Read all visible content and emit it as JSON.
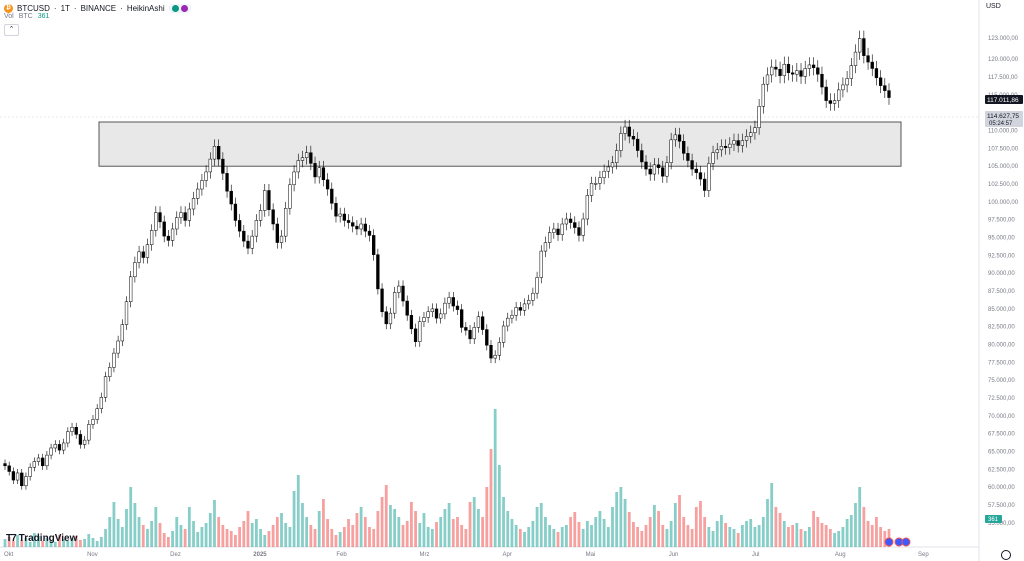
{
  "header": {
    "symbol": "BTCUSD",
    "interval": "1T",
    "exchange": "BINANCE",
    "chart_style": "HeikinAshi",
    "separator": "·"
  },
  "volume_legend": {
    "label": "Vol",
    "unit": "BTC",
    "value": "361"
  },
  "currency_button": "USD",
  "brand": "TradingView",
  "icons": {
    "coin": "bitcoin-coin-icon",
    "collapse": "chevron-up-icon",
    "settings": "gear-icon",
    "flags": "flag-icon"
  },
  "colors": {
    "up_volume": "#26a69a",
    "down_volume": "#ef5350",
    "candle_up": "#ffffff",
    "candle_down": "#000000",
    "zone_fill": "#e8e8e8"
  },
  "chart_data": {
    "type": "candlestick-heikinashi",
    "y_axis_ticks": [
      "123.000,00",
      "120.000,00",
      "117.500,00",
      "115.000,00",
      "110.000,00",
      "107.500,00",
      "105.000,00",
      "102.500,00",
      "100.000,00",
      "97.500,00",
      "95.000,00",
      "92.500,00",
      "90.000,00",
      "87.500,00",
      "85.000,00",
      "82.500,00",
      "80.000,00",
      "77.500,00",
      "75.000,00",
      "72.500,00",
      "70.000,00",
      "67.500,00",
      "65.000,00",
      "62.500,00",
      "60.000,00",
      "57.500,00",
      "55.000,00"
    ],
    "x_axis_ticks": [
      "Okt",
      "Nov",
      "Dez",
      "2025",
      "Feb",
      "Mrz",
      "Apr",
      "Mai",
      "Jun",
      "Jul",
      "Aug",
      "Sep"
    ],
    "price_labels": {
      "last": "117.011,86",
      "current": "114.627,75",
      "countdown": "05:24:57",
      "volume": "361"
    },
    "zone": {
      "y_top": 111200,
      "y_bottom": 105000
    },
    "ylim": [
      54000,
      125500
    ],
    "closes": [
      63000,
      62200,
      61000,
      62000,
      60200,
      61500,
      62800,
      63600,
      64100,
      63000,
      64500,
      65500,
      66000,
      65200,
      66200,
      67800,
      68400,
      67400,
      66000,
      66600,
      68800,
      69500,
      71000,
      72600,
      75500,
      76800,
      78800,
      80500,
      82800,
      86000,
      89500,
      91500,
      93000,
      92200,
      94000,
      96000,
      98500,
      97200,
      95200,
      94600,
      96200,
      97800,
      98500,
      97400,
      99000,
      100500,
      101800,
      103000,
      104200,
      106000,
      107800,
      106000,
      104000,
      101500,
      99700,
      97400,
      95900,
      94500,
      93500,
      95200,
      97400,
      98800,
      101600,
      98900,
      96900,
      94300,
      95200,
      99100,
      102400,
      104200,
      105800,
      106200,
      106900,
      105400,
      103500,
      104800,
      103100,
      101800,
      99800,
      98000,
      98300,
      97400,
      97100,
      96600,
      96200,
      96900,
      95900,
      95300,
      92600,
      87800,
      84600,
      82900,
      84400,
      87300,
      88200,
      86100,
      84100,
      82200,
      80400,
      83200,
      83800,
      84600,
      85000,
      83700,
      84300,
      85800,
      86600,
      85400,
      84900,
      82400,
      82000,
      80800,
      82400,
      83900,
      82100,
      79900,
      78100,
      78500,
      80300,
      82600,
      83700,
      84100,
      85200,
      84800,
      85700,
      86200,
      87200,
      89400,
      93100,
      94300,
      95700,
      96200,
      95400,
      96900,
      97600,
      97100,
      96400,
      95300,
      97600,
      100900,
      102600,
      102600,
      103400,
      104300,
      104900,
      105500,
      107200,
      109600,
      110500,
      109200,
      108800,
      107200,
      105600,
      104600,
      103900,
      105200,
      104800,
      103600,
      105500,
      108700,
      109400,
      108500,
      106800,
      105800,
      104600,
      104100,
      103200,
      101600,
      105400,
      106900,
      107300,
      107800,
      107600,
      108100,
      108600,
      107900,
      108600,
      109200,
      109700,
      110400,
      113400,
      116500,
      117800,
      118900,
      118600,
      117700,
      119300,
      118100,
      117900,
      118400,
      117600,
      118700,
      119200,
      118800,
      117900,
      116100,
      114200,
      113800,
      114200,
      115700,
      116400,
      117300,
      119100,
      121000,
      122900,
      120500,
      119600,
      118700,
      117400,
      116300,
      115600,
      114630
    ],
    "volumes": [
      8,
      10,
      6,
      12,
      7,
      9,
      5,
      14,
      11,
      6,
      9,
      7,
      5,
      12,
      8,
      6,
      9,
      11,
      7,
      8,
      13,
      9,
      6,
      10,
      18,
      30,
      45,
      28,
      20,
      38,
      60,
      44,
      30,
      22,
      18,
      26,
      40,
      24,
      14,
      10,
      16,
      30,
      22,
      18,
      40,
      26,
      15,
      20,
      24,
      34,
      47,
      30,
      22,
      18,
      16,
      12,
      20,
      26,
      36,
      24,
      28,
      18,
      12,
      16,
      22,
      30,
      34,
      24,
      20,
      56,
      72,
      44,
      30,
      22,
      18,
      36,
      48,
      28,
      18,
      12,
      15,
      20,
      28,
      22,
      34,
      40,
      30,
      20,
      18,
      36,
      50,
      62,
      42,
      38,
      30,
      22,
      26,
      45,
      36,
      24,
      34,
      20,
      18,
      25,
      30,
      38,
      44,
      28,
      30,
      22,
      18,
      45,
      50,
      38,
      30,
      60,
      98,
      138,
      82,
      50,
      36,
      28,
      22,
      18,
      15,
      20,
      26,
      40,
      44,
      30,
      22,
      18,
      15,
      20,
      22,
      30,
      35,
      25,
      18,
      26,
      22,
      30,
      36,
      28,
      20,
      40,
      55,
      60,
      48,
      35,
      25,
      20,
      16,
      22,
      30,
      42,
      36,
      22,
      18,
      26,
      44,
      52,
      30,
      22,
      18,
      40,
      46,
      30,
      20,
      16,
      26,
      32,
      24,
      20,
      18,
      14,
      22,
      26,
      28,
      20,
      22,
      30,
      48,
      64,
      40,
      34,
      26,
      20,
      22,
      24,
      18,
      16,
      20,
      36,
      30,
      24,
      22,
      18,
      14,
      16,
      20,
      28,
      32,
      44,
      60,
      40,
      26,
      22,
      30,
      20,
      16,
      18
    ]
  }
}
